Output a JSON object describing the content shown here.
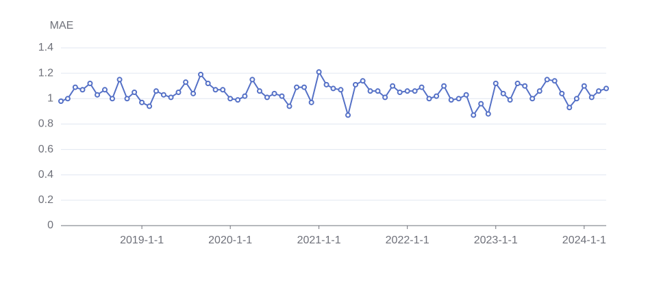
{
  "chart_data": {
    "type": "line",
    "y_label": "MAE",
    "x": [
      "2018-2-1",
      "2018-3-1",
      "2018-4-1",
      "2018-5-1",
      "2018-6-1",
      "2018-7-1",
      "2018-8-1",
      "2018-9-1",
      "2018-10-1",
      "2018-11-1",
      "2018-12-1",
      "2019-1-1",
      "2019-2-1",
      "2019-3-1",
      "2019-4-1",
      "2019-5-1",
      "2019-6-1",
      "2019-7-1",
      "2019-8-1",
      "2019-9-1",
      "2019-10-1",
      "2019-11-1",
      "2019-12-1",
      "2020-1-1",
      "2020-2-1",
      "2020-3-1",
      "2020-4-1",
      "2020-5-1",
      "2020-6-1",
      "2020-7-1",
      "2020-8-1",
      "2020-9-1",
      "2020-10-1",
      "2020-11-1",
      "2020-12-1",
      "2021-1-1",
      "2021-2-1",
      "2021-3-1",
      "2021-4-1",
      "2021-5-1",
      "2021-6-1",
      "2021-7-1",
      "2021-8-1",
      "2021-9-1",
      "2021-10-1",
      "2021-11-1",
      "2021-12-1",
      "2022-1-1",
      "2022-2-1",
      "2022-3-1",
      "2022-4-1",
      "2022-5-1",
      "2022-6-1",
      "2022-7-1",
      "2022-8-1",
      "2022-9-1",
      "2022-10-1",
      "2022-11-1",
      "2022-12-1",
      "2023-1-1",
      "2023-2-1",
      "2023-3-1",
      "2023-4-1",
      "2023-5-1",
      "2023-6-1",
      "2023-7-1",
      "2023-8-1",
      "2023-9-1",
      "2023-10-1",
      "2023-11-1",
      "2023-12-1",
      "2024-1-1",
      "2024-2-1",
      "2024-3-1",
      "2024-4-1"
    ],
    "series": [
      {
        "name": "MAE",
        "color": "#5470c6",
        "values": [
          0.98,
          1.0,
          1.09,
          1.07,
          1.12,
          1.03,
          1.07,
          1.0,
          1.15,
          1.0,
          1.05,
          0.97,
          0.94,
          1.06,
          1.03,
          1.01,
          1.05,
          1.13,
          1.04,
          1.19,
          1.12,
          1.07,
          1.07,
          1.0,
          0.99,
          1.02,
          1.15,
          1.06,
          1.01,
          1.04,
          1.02,
          0.94,
          1.09,
          1.09,
          0.97,
          1.21,
          1.11,
          1.08,
          1.07,
          0.87,
          1.11,
          1.14,
          1.06,
          1.06,
          1.01,
          1.1,
          1.05,
          1.06,
          1.06,
          1.09,
          1.0,
          1.02,
          1.1,
          0.99,
          1.0,
          1.03,
          0.87,
          0.96,
          0.88,
          1.12,
          1.04,
          0.99,
          1.12,
          1.1,
          1.0,
          1.06,
          1.15,
          1.14,
          1.04,
          0.93,
          1.0,
          1.1,
          1.01,
          1.06,
          1.08
        ]
      }
    ],
    "xlim": [
      "2018-2-1",
      "2024-4-1"
    ],
    "xticks": [
      "2019-1-1",
      "2020-1-1",
      "2021-1-1",
      "2022-1-1",
      "2023-1-1",
      "2024-1-1"
    ],
    "ylim": [
      0,
      1.4
    ],
    "yticks": [
      0,
      0.2,
      0.4,
      0.6,
      0.8,
      1,
      1.2,
      1.4
    ],
    "grid": true
  }
}
